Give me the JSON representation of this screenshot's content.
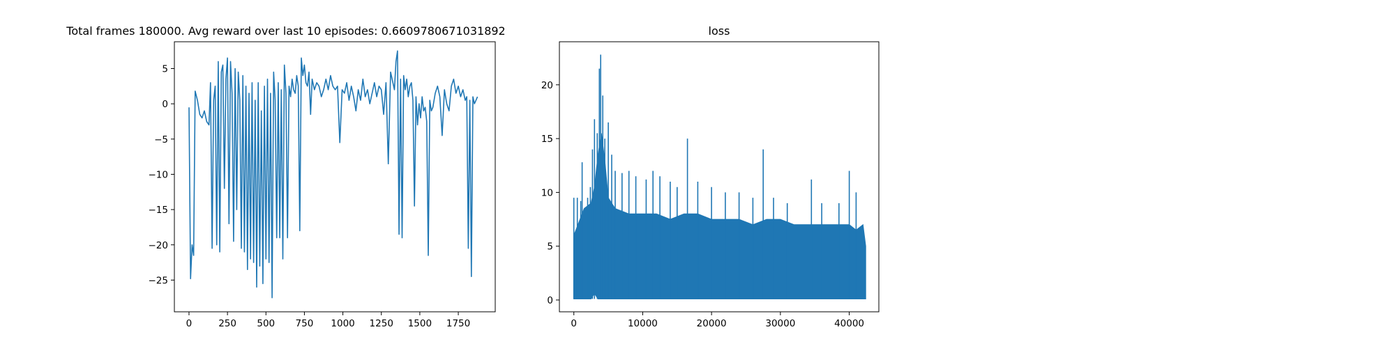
{
  "chart_data": [
    {
      "type": "line",
      "title": "Total frames 180000. Avg reward over last 10 episodes: 0.6609780671031892",
      "xlabel": "",
      "ylabel": "",
      "xlim": [
        -95,
        1990
      ],
      "ylim": [
        -29.5,
        8.8
      ],
      "x_ticks": [
        0,
        250,
        500,
        750,
        1000,
        1250,
        1500,
        1750
      ],
      "y_ticks": [
        5,
        0,
        -5,
        -10,
        -15,
        -20,
        -25
      ],
      "grid": false,
      "legend": "none",
      "color": "#1f77b4",
      "series": [
        {
          "x": [
            0,
            10,
            20,
            30,
            40,
            55,
            70,
            85,
            100,
            115,
            130,
            140,
            150,
            160,
            170,
            180,
            190,
            200,
            210,
            220,
            230,
            240,
            250,
            260,
            270,
            280,
            290,
            300,
            310,
            320,
            330,
            340,
            350,
            360,
            370,
            380,
            390,
            400,
            410,
            420,
            430,
            440,
            450,
            460,
            470,
            480,
            490,
            500,
            510,
            520,
            530,
            540,
            550,
            560,
            570,
            580,
            590,
            600,
            610,
            620,
            630,
            640,
            650,
            660,
            670,
            680,
            690,
            700,
            710,
            720,
            730,
            740,
            750,
            760,
            770,
            780,
            790,
            800,
            815,
            830,
            845,
            860,
            875,
            890,
            905,
            920,
            935,
            950,
            965,
            980,
            995,
            1010,
            1025,
            1040,
            1055,
            1070,
            1085,
            1100,
            1115,
            1130,
            1145,
            1160,
            1175,
            1190,
            1205,
            1220,
            1235,
            1250,
            1265,
            1280,
            1295,
            1310,
            1325,
            1335,
            1345,
            1355,
            1365,
            1375,
            1385,
            1395,
            1405,
            1415,
            1425,
            1435,
            1445,
            1455,
            1465,
            1475,
            1485,
            1495,
            1505,
            1515,
            1525,
            1535,
            1545,
            1555,
            1565,
            1575,
            1585,
            1600,
            1615,
            1630,
            1645,
            1660,
            1675,
            1690,
            1705,
            1720,
            1735,
            1750,
            1765,
            1780,
            1795,
            1805,
            1815,
            1825,
            1835,
            1845,
            1855,
            1865,
            1875
          ],
          "y": [
            -0.5,
            -24.8,
            -20.0,
            -21.5,
            1.8,
            0.5,
            -1.5,
            -2.0,
            -1.0,
            -2.5,
            -3.0,
            3.0,
            -20.5,
            0.5,
            2.5,
            -20.0,
            6.0,
            -21.0,
            4.5,
            5.5,
            -12.0,
            3.5,
            6.5,
            -17.0,
            6.0,
            1.5,
            -19.5,
            5.0,
            -15.0,
            4.5,
            0.5,
            -20.5,
            4.0,
            -21.0,
            2.5,
            -23.5,
            1.5,
            -22.0,
            3.0,
            -22.5,
            0.5,
            -26.0,
            3.0,
            -23.0,
            -1.0,
            -25.5,
            2.5,
            -22.0,
            3.5,
            -22.5,
            1.5,
            -27.5,
            4.5,
            0.5,
            -19.0,
            3.0,
            -19.0,
            2.0,
            -22.0,
            5.5,
            1.5,
            -19.0,
            2.5,
            1.0,
            3.5,
            2.0,
            1.5,
            4.0,
            2.5,
            -18.0,
            6.5,
            4.0,
            5.5,
            3.0,
            2.5,
            4.5,
            -1.5,
            3.5,
            2.0,
            3.0,
            2.5,
            1.0,
            2.0,
            3.5,
            2.0,
            4.0,
            2.5,
            2.0,
            2.5,
            -5.5,
            2.0,
            1.5,
            3.0,
            0.5,
            2.5,
            1.0,
            -1.0,
            2.0,
            0.5,
            3.5,
            1.0,
            2.0,
            0.0,
            1.5,
            3.0,
            1.0,
            2.5,
            2.0,
            -1.5,
            3.0,
            -8.5,
            4.5,
            3.0,
            2.0,
            6.0,
            7.5,
            -18.5,
            3.5,
            -19.0,
            4.0,
            2.0,
            3.5,
            1.0,
            2.5,
            3.0,
            0.5,
            -14.5,
            1.0,
            -3.0,
            0.0,
            -2.0,
            1.0,
            -1.0,
            -0.5,
            -2.5,
            -21.5,
            0.5,
            -1.0,
            -0.5,
            1.5,
            2.5,
            1.0,
            -4.5,
            2.0,
            0.0,
            -1.0,
            2.5,
            3.5,
            1.5,
            2.5,
            1.0,
            2.0,
            0.5,
            1.0,
            -20.5,
            0.5,
            -24.5,
            1.0,
            0.0,
            0.5,
            1.0
          ]
        }
      ]
    },
    {
      "type": "area",
      "title": "loss",
      "xlabel": "",
      "ylabel": "",
      "xlim": [
        -2100,
        44300
      ],
      "ylim": [
        -1.1,
        24.0
      ],
      "x_ticks": [
        0,
        10000,
        20000,
        30000,
        40000
      ],
      "y_ticks": [
        20,
        15,
        10,
        5,
        0
      ],
      "grid": false,
      "legend": "none",
      "color": "#1f77b4",
      "series": [
        {
          "x": [
            0,
            1500,
            2500,
            3000,
            3500,
            4000,
            4500,
            5000,
            6000,
            8000,
            10000,
            12000,
            14000,
            16000,
            18000,
            20000,
            22000,
            24000,
            26000,
            28000,
            30000,
            32000,
            34000,
            36000,
            38000,
            40000,
            41000,
            42000,
            42400
          ],
          "y_upper": [
            6.0,
            8.5,
            9.0,
            10.5,
            13.5,
            15.5,
            13.0,
            9.5,
            8.5,
            8.0,
            8.0,
            8.0,
            7.5,
            8.0,
            8.0,
            7.5,
            7.5,
            7.5,
            7.0,
            7.5,
            7.5,
            7.0,
            7.0,
            7.0,
            7.0,
            7.0,
            6.5,
            7.0,
            5.0
          ],
          "y_lower": [
            0.1,
            0.1,
            0.1,
            0.6,
            0.1,
            0.1,
            0.1,
            0.1,
            0.1,
            0.1,
            0.1,
            0.1,
            0.1,
            0.1,
            0.1,
            0.1,
            0.1,
            0.1,
            0.1,
            0.1,
            0.1,
            0.1,
            0.1,
            0.1,
            0.1,
            0.1,
            0.1,
            0.1,
            0.1
          ]
        }
      ],
      "spikes": [
        {
          "x": 0,
          "y": 9.5
        },
        {
          "x": 500,
          "y": 9.5
        },
        {
          "x": 1000,
          "y": 9.2
        },
        {
          "x": 1200,
          "y": 12.8
        },
        {
          "x": 2000,
          "y": 9.5
        },
        {
          "x": 2400,
          "y": 10.5
        },
        {
          "x": 2700,
          "y": 14.0
        },
        {
          "x": 3000,
          "y": 16.8
        },
        {
          "x": 3400,
          "y": 15.5
        },
        {
          "x": 3700,
          "y": 21.5
        },
        {
          "x": 3900,
          "y": 22.8
        },
        {
          "x": 4200,
          "y": 19.0
        },
        {
          "x": 4500,
          "y": 15.0
        },
        {
          "x": 5000,
          "y": 16.5
        },
        {
          "x": 5500,
          "y": 13.5
        },
        {
          "x": 6000,
          "y": 12.0
        },
        {
          "x": 7000,
          "y": 11.8
        },
        {
          "x": 8000,
          "y": 12.0
        },
        {
          "x": 9000,
          "y": 11.5
        },
        {
          "x": 10500,
          "y": 11.2
        },
        {
          "x": 11500,
          "y": 12.0
        },
        {
          "x": 12500,
          "y": 11.5
        },
        {
          "x": 14000,
          "y": 11.0
        },
        {
          "x": 15000,
          "y": 10.5
        },
        {
          "x": 16500,
          "y": 15.0
        },
        {
          "x": 18000,
          "y": 11.0
        },
        {
          "x": 20000,
          "y": 10.5
        },
        {
          "x": 22000,
          "y": 10.0
        },
        {
          "x": 24000,
          "y": 10.0
        },
        {
          "x": 26000,
          "y": 9.5
        },
        {
          "x": 27500,
          "y": 14.0
        },
        {
          "x": 29000,
          "y": 9.5
        },
        {
          "x": 31000,
          "y": 9.0
        },
        {
          "x": 34500,
          "y": 11.2
        },
        {
          "x": 36000,
          "y": 9.0
        },
        {
          "x": 38500,
          "y": 9.0
        },
        {
          "x": 40000,
          "y": 12.0
        },
        {
          "x": 41000,
          "y": 10.0
        }
      ]
    }
  ]
}
